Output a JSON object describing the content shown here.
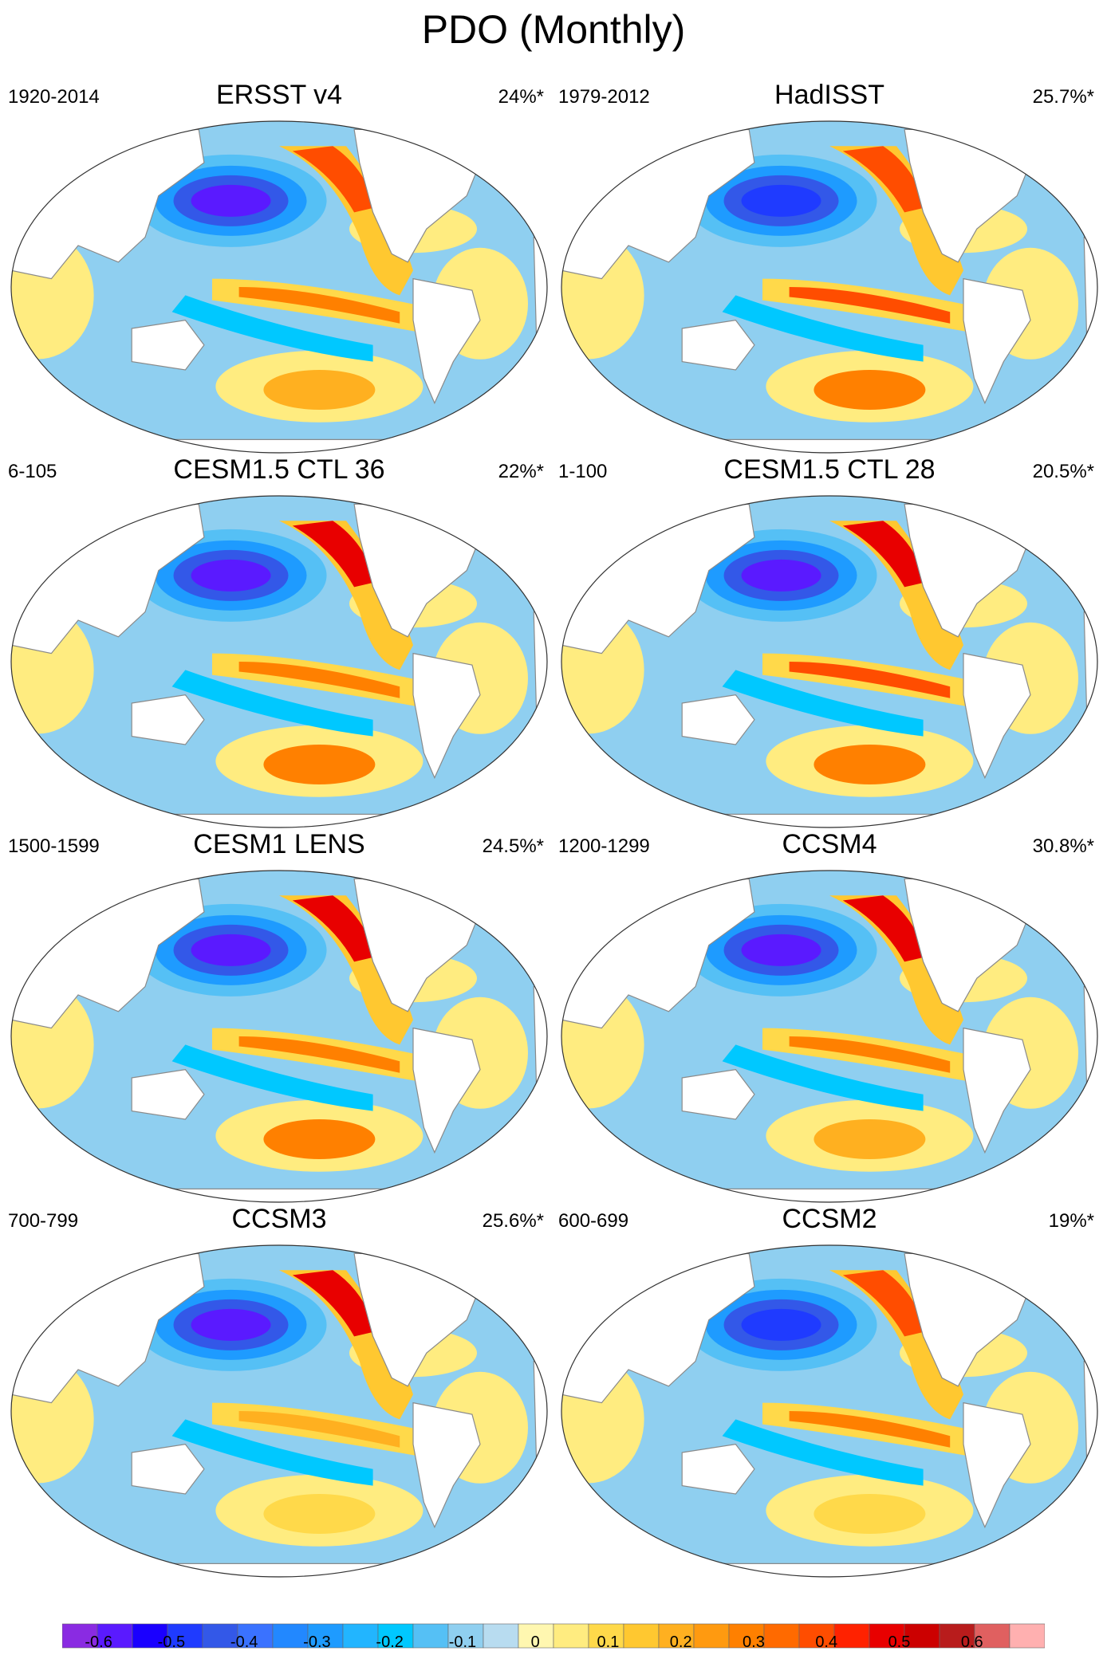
{
  "figure": {
    "title": "PDO (Monthly)"
  },
  "colors": {
    "land": "#ffffff",
    "coast": "#8a8a8a",
    "outline": "#333333"
  },
  "panels": [
    {
      "title": "ERSST v4",
      "period": "1920-2014",
      "variance": "24%*",
      "features": {
        "npac_neg": -0.6,
        "nepac_pos": 0.4,
        "trop_pos": 0.3,
        "spac_pos": 0.2
      }
    },
    {
      "title": "HadISST",
      "period": "1979-2012",
      "variance": "25.7%*",
      "features": {
        "npac_neg": -0.5,
        "nepac_pos": 0.4,
        "trop_pos": 0.4,
        "spac_pos": 0.3
      }
    },
    {
      "title": "CESM1.5 CTL 36",
      "period": "6-105",
      "variance": "22%*",
      "features": {
        "npac_neg": -0.6,
        "nepac_pos": 0.5,
        "trop_pos": 0.3,
        "spac_pos": 0.3
      }
    },
    {
      "title": "CESM1.5 CTL 28",
      "period": "1-100",
      "variance": "20.5%*",
      "features": {
        "npac_neg": -0.6,
        "nepac_pos": 0.5,
        "trop_pos": 0.4,
        "spac_pos": 0.3
      }
    },
    {
      "title": "CESM1 LENS",
      "period": "1500-1599",
      "variance": "24.5%*",
      "features": {
        "npac_neg": -0.6,
        "nepac_pos": 0.5,
        "trop_pos": 0.3,
        "spac_pos": 0.3
      }
    },
    {
      "title": "CCSM4",
      "period": "1200-1299",
      "variance": "30.8%*",
      "features": {
        "npac_neg": -0.6,
        "nepac_pos": 0.5,
        "trop_pos": 0.3,
        "spac_pos": 0.2
      }
    },
    {
      "title": "CCSM3",
      "period": "700-799",
      "variance": "25.6%*",
      "features": {
        "npac_neg": -0.6,
        "nepac_pos": 0.5,
        "trop_pos": 0.2,
        "spac_pos": 0.1
      }
    },
    {
      "title": "CCSM2",
      "period": "600-699",
      "variance": "19%*",
      "features": {
        "npac_neg": -0.5,
        "nepac_pos": 0.4,
        "trop_pos": 0.3,
        "spac_pos": 0.1
      }
    }
  ],
  "colorbar": {
    "boundaries": [
      -0.65,
      -0.6,
      -0.55,
      -0.5,
      -0.45,
      -0.4,
      -0.35,
      -0.3,
      -0.25,
      -0.2,
      -0.15,
      -0.1,
      -0.05,
      0,
      0.05,
      0.1,
      0.15,
      0.2,
      0.25,
      0.3,
      0.35,
      0.4,
      0.45,
      0.5,
      0.55,
      0.6,
      0.65,
      0.7
    ],
    "colors": [
      "#8a2be2",
      "#5a1aff",
      "#1a00ff",
      "#1f3bff",
      "#3358e8",
      "#3a72ff",
      "#2288ff",
      "#1e9bff",
      "#22b5ff",
      "#00c8ff",
      "#55c0f5",
      "#8fcff0",
      "#b8dcf0",
      "#fff7b0",
      "#ffec80",
      "#ffd94a",
      "#ffc830",
      "#ffb020",
      "#ff9a10",
      "#ff8000",
      "#ff6a00",
      "#ff4d00",
      "#ff2200",
      "#e80000",
      "#cc0000",
      "#b81c1c",
      "#e06060",
      "#ffb0b0"
    ],
    "tick_labels": [
      "-0.6",
      "-0.5",
      "-0.4",
      "-0.3",
      "-0.2",
      "-0.1",
      "0",
      "0.1",
      "0.2",
      "0.3",
      "0.4",
      "0.5",
      "0.6"
    ],
    "tick_values": [
      -0.6,
      -0.5,
      -0.4,
      -0.3,
      -0.2,
      -0.1,
      0,
      0.1,
      0.2,
      0.3,
      0.4,
      0.5,
      0.6
    ]
  }
}
